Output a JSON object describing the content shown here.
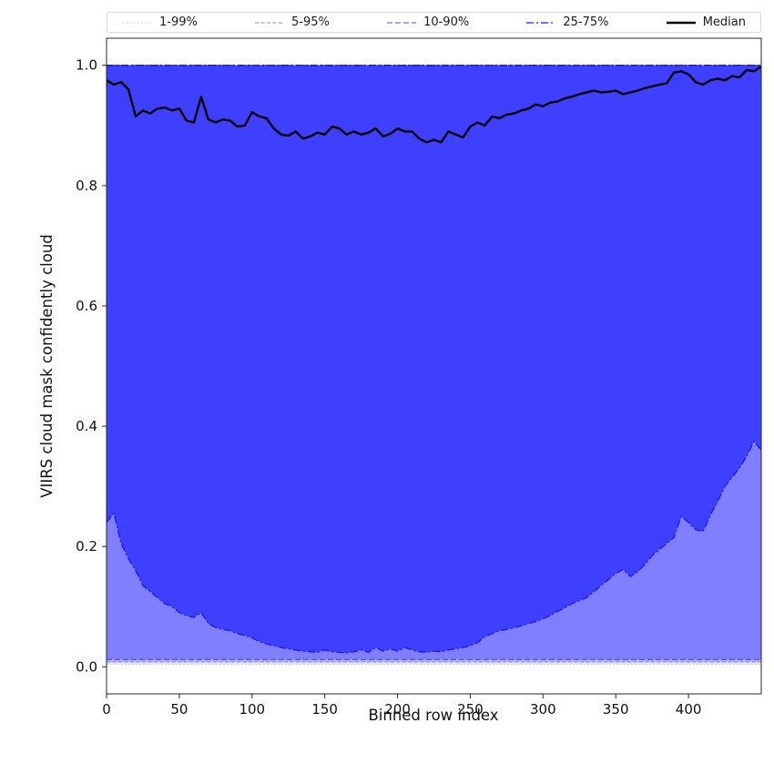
{
  "chart_data": {
    "type": "area",
    "title": "",
    "xlabel": "Binned row index",
    "ylabel": "VIIRS cloud mask confidently cloud",
    "xlim": [
      0,
      450
    ],
    "ylim": [
      -0.045,
      1.045
    ],
    "grid": false,
    "legend_position": "top",
    "xticks": [
      0,
      50,
      100,
      150,
      200,
      250,
      300,
      350,
      400
    ],
    "xtick_labels": [
      "0",
      "50",
      "100",
      "150",
      "200",
      "250",
      "300",
      "350",
      "400"
    ],
    "yticks": [
      0.0,
      0.2,
      0.4,
      0.6,
      0.8,
      1.0
    ],
    "ytick_labels": [
      "0.0",
      "0.2",
      "0.4",
      "0.6",
      "0.8",
      "1.0"
    ],
    "base_fill_color": "#0000ff",
    "x": [
      0,
      5,
      10,
      15,
      20,
      25,
      30,
      35,
      40,
      45,
      50,
      55,
      60,
      65,
      70,
      75,
      80,
      85,
      90,
      95,
      100,
      105,
      110,
      115,
      120,
      125,
      130,
      135,
      140,
      145,
      150,
      155,
      160,
      165,
      170,
      175,
      180,
      185,
      190,
      195,
      200,
      205,
      210,
      215,
      220,
      225,
      230,
      235,
      240,
      245,
      250,
      255,
      260,
      265,
      270,
      275,
      280,
      285,
      290,
      295,
      300,
      305,
      310,
      315,
      320,
      325,
      330,
      335,
      340,
      345,
      350,
      355,
      360,
      365,
      370,
      375,
      380,
      385,
      390,
      395,
      400,
      405,
      410,
      415,
      420,
      425,
      430,
      435,
      440,
      445,
      450
    ],
    "series": [
      {
        "name": "p01",
        "const": 0.004
      },
      {
        "name": "p05",
        "const": 0.008
      },
      {
        "name": "p10",
        "const": 0.012
      },
      {
        "name": "p25",
        "values": [
          0.24,
          0.255,
          0.205,
          0.18,
          0.16,
          0.135,
          0.125,
          0.115,
          0.105,
          0.1,
          0.09,
          0.085,
          0.082,
          0.09,
          0.072,
          0.065,
          0.062,
          0.06,
          0.055,
          0.052,
          0.048,
          0.042,
          0.038,
          0.035,
          0.032,
          0.03,
          0.028,
          0.026,
          0.025,
          0.024,
          0.028,
          0.025,
          0.024,
          0.023,
          0.025,
          0.028,
          0.024,
          0.032,
          0.026,
          0.03,
          0.026,
          0.032,
          0.028,
          0.025,
          0.024,
          0.026,
          0.025,
          0.028,
          0.03,
          0.032,
          0.035,
          0.04,
          0.05,
          0.055,
          0.06,
          0.062,
          0.065,
          0.068,
          0.072,
          0.075,
          0.08,
          0.085,
          0.092,
          0.098,
          0.105,
          0.11,
          0.115,
          0.125,
          0.135,
          0.145,
          0.155,
          0.162,
          0.15,
          0.158,
          0.17,
          0.185,
          0.195,
          0.205,
          0.215,
          0.25,
          0.24,
          0.228,
          0.225,
          0.252,
          0.275,
          0.3,
          0.315,
          0.33,
          0.35,
          0.375,
          0.36
        ]
      },
      {
        "name": "median",
        "values": [
          0.975,
          0.968,
          0.972,
          0.96,
          0.915,
          0.925,
          0.92,
          0.928,
          0.93,
          0.925,
          0.928,
          0.908,
          0.905,
          0.948,
          0.91,
          0.905,
          0.91,
          0.908,
          0.898,
          0.9,
          0.922,
          0.915,
          0.912,
          0.895,
          0.885,
          0.883,
          0.89,
          0.878,
          0.882,
          0.888,
          0.885,
          0.898,
          0.895,
          0.885,
          0.89,
          0.885,
          0.888,
          0.895,
          0.882,
          0.886,
          0.895,
          0.89,
          0.89,
          0.878,
          0.872,
          0.876,
          0.872,
          0.89,
          0.885,
          0.88,
          0.898,
          0.905,
          0.9,
          0.915,
          0.912,
          0.918,
          0.92,
          0.925,
          0.928,
          0.935,
          0.932,
          0.938,
          0.94,
          0.945,
          0.948,
          0.952,
          0.955,
          0.958,
          0.955,
          0.956,
          0.958,
          0.952,
          0.955,
          0.958,
          0.962,
          0.965,
          0.968,
          0.97,
          0.988,
          0.99,
          0.985,
          0.972,
          0.968,
          0.975,
          0.978,
          0.975,
          0.982,
          0.98,
          0.992,
          0.99,
          0.998
        ]
      },
      {
        "name": "p75",
        "const": 1.0
      },
      {
        "name": "p90",
        "const": 1.0
      },
      {
        "name": "p95",
        "const": 1.0
      },
      {
        "name": "p99",
        "const": 1.0
      }
    ],
    "bands": [
      {
        "label": "1-99%",
        "lower": "p01",
        "upper": "p99",
        "alpha": 0.1,
        "edge_color": "rgba(0,0,255,0.22)",
        "dash": "1.5 2.5",
        "edge_width": 1.0
      },
      {
        "label": "5-95%",
        "lower": "p05",
        "upper": "p95",
        "alpha": 0.2,
        "edge_color": "rgba(0,0,255,0.38)",
        "dash": "4 2.5",
        "edge_width": 1.1
      },
      {
        "label": "10-90%",
        "lower": "p10",
        "upper": "p90",
        "alpha": 0.3,
        "edge_color": "rgba(0,0,255,0.55)",
        "dash": "6 3",
        "edge_width": 1.2
      },
      {
        "label": "25-75%",
        "lower": "p25",
        "upper": "p75",
        "alpha": 0.5,
        "edge_color": "rgba(0,0,255,0.75)",
        "dash": "8 3 2 3",
        "edge_width": 1.3
      }
    ],
    "median_line": {
      "label": "Median",
      "series": "median",
      "color": "#000000",
      "width": 2.4
    },
    "legend_items": [
      {
        "label": "1-99%",
        "color": "rgba(0,0,255,0.22)",
        "dash": "1.5 2.5",
        "width": 1.2
      },
      {
        "label": "5-95%",
        "color": "rgba(0,0,255,0.38)",
        "dash": "4 2.5",
        "width": 1.2
      },
      {
        "label": "10-90%",
        "color": "rgba(0,0,255,0.55)",
        "dash": "6 3",
        "width": 1.3
      },
      {
        "label": "25-75%",
        "color": "rgba(0,0,255,0.75)",
        "dash": "8 3 2 3",
        "width": 1.4
      },
      {
        "label": "Median",
        "color": "#000000",
        "dash": "",
        "width": 2.6
      }
    ]
  }
}
